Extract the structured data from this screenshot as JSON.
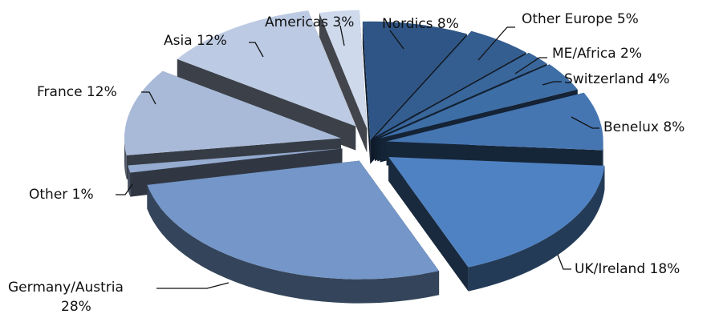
{
  "chart_data": {
    "type": "pie",
    "title": "",
    "three_d": true,
    "exploded": true,
    "legend": "none",
    "slices": [
      {
        "label": "Nordics",
        "value": 8,
        "color": "#2e5585"
      },
      {
        "label": "Other Europe",
        "value": 5,
        "color": "#345d90"
      },
      {
        "label": "ME/Africa",
        "value": 2,
        "color": "#39669b"
      },
      {
        "label": "Switzerland",
        "value": 4,
        "color": "#3e6ea6"
      },
      {
        "label": "Benelux",
        "value": 8,
        "color": "#4676b2"
      },
      {
        "label": "UK/Ireland",
        "value": 18,
        "color": "#4f82c2"
      },
      {
        "label": "Germany/Austria",
        "value": 28,
        "color": "#7496c8"
      },
      {
        "label": "Other",
        "value": 1,
        "color": "#95abd0"
      },
      {
        "label": "France",
        "value": 12,
        "color": "#a9bad9"
      },
      {
        "label": "Asia",
        "value": 12,
        "color": "#bccae3"
      },
      {
        "label": "Americas",
        "value": 3,
        "color": "#ced9ec"
      }
    ],
    "labels": [
      {
        "name": "Nordics",
        "text": "Nordics 8%"
      },
      {
        "name": "Other Europe",
        "text": "Other Europe 5%"
      },
      {
        "name": "ME/Africa",
        "text": "ME/Africa 2%"
      },
      {
        "name": "Switzerland",
        "text": "Switzerland 4%"
      },
      {
        "name": "Benelux",
        "text": "Benelux 8%"
      },
      {
        "name": "UK/Ireland",
        "text": "UK/Ireland 18%"
      },
      {
        "name": "Germany/Austria",
        "text": "Germany/Austria",
        "text2": "28%"
      },
      {
        "name": "Other",
        "text": "Other 1%"
      },
      {
        "name": "France",
        "text": "France 12%"
      },
      {
        "name": "Asia",
        "text": "Asia 12%"
      },
      {
        "name": "Americas",
        "text": "Americas 3%"
      }
    ]
  }
}
